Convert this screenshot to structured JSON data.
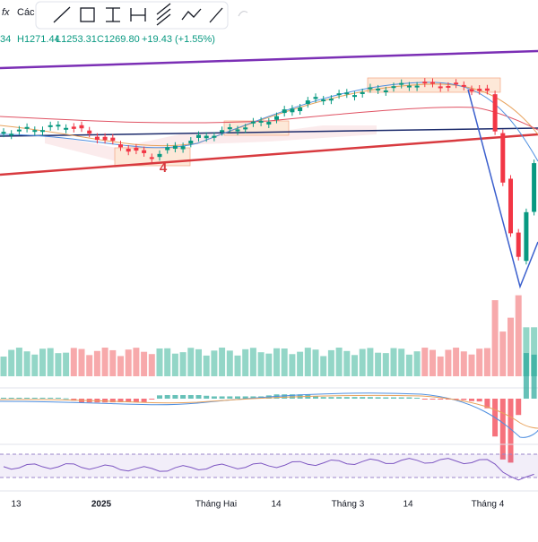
{
  "toolbar": {
    "formula_icon": "fx",
    "label": "Các"
  },
  "legend": {
    "open": "34",
    "high": "H1271.44",
    "low": "L1253.31",
    "close": "C1269.80",
    "change": "+19.43 (+1.55%)"
  },
  "annotation": "4",
  "time_axis": [
    "13",
    "2025",
    "Tháng Hai",
    "14",
    "Tháng 3",
    "14",
    "Tháng 4"
  ]
}
